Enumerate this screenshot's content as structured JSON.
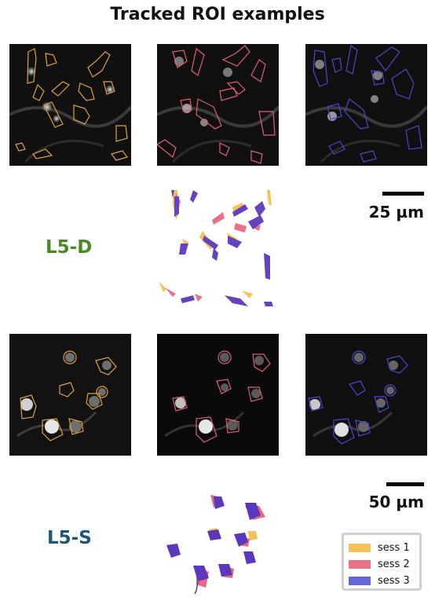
{
  "title": "Tracked ROI examples",
  "sections": [
    {
      "region": "L5-D",
      "region_color": "#4a8a22",
      "scale_label": "25 µm"
    },
    {
      "region": "L5-S",
      "region_color": "#1f5577",
      "scale_label": "50 µm"
    }
  ],
  "sessions": [
    {
      "label": "sess 1",
      "color": "#f6b93b"
    },
    {
      "label": "sess 2",
      "color": "#e45973"
    },
    {
      "label": "sess 3",
      "color": "#4a4ad6"
    }
  ]
}
